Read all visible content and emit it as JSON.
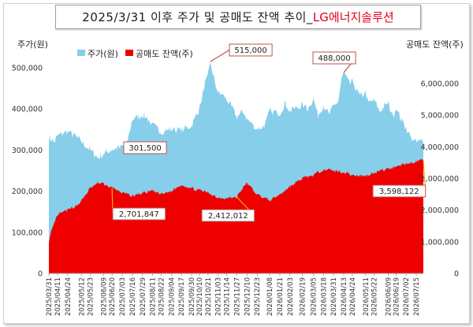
{
  "title": {
    "main": "2025/3/31 이후 주가 및 공매도 잔액 추이_",
    "company": "LG에너지솔루션"
  },
  "left_axis_label": "주가(원)",
  "right_axis_label": "공매도 잔액(주)",
  "legend": {
    "price": "주가(원)",
    "short": "공매도 잔액(주)"
  },
  "colors": {
    "price": "#87ceeb",
    "short": "#ee0000",
    "callout_border": "#c0504d",
    "connector": "#f0b400"
  },
  "chart_data": {
    "type": "area",
    "title": "2025/3/31 이후 주가 및 공매도 잔액 추이_LG에너지솔루션",
    "y_left": {
      "label": "주가(원)",
      "range": [
        0,
        500000
      ],
      "ticks": [
        0,
        100000,
        200000,
        300000,
        400000,
        500000
      ]
    },
    "y_right": {
      "label": "공매도 잔액(주)",
      "range": [
        0,
        6500000
      ],
      "ticks": [
        0,
        1000000,
        2000000,
        3000000,
        4000000,
        5000000,
        6000000
      ]
    },
    "x_range": [
      "2025-03-31",
      "2026-07-24"
    ],
    "x_ticks": [
      "2025/03/31",
      "2025/04/11",
      "2025/04/24",
      "2025/05/12",
      "2025/05/23",
      "2025/06/09",
      "2025/06/20",
      "2025/07/03",
      "2025/07/16",
      "2025/07/29",
      "2025/08/11",
      "2025/08/22",
      "2025/09/04",
      "2025/09/17",
      "2025/09/30",
      "2025/10/10",
      "2025/10/21",
      "2025/11/03",
      "2025/11/14",
      "2025/11/27",
      "2025/12/10",
      "2025/12/23",
      "2026/01/08",
      "2026/01/21",
      "2026/02/03",
      "2026/02/19",
      "2026/03/05",
      "2026/03/18",
      "2026/03/31",
      "2026/04/13",
      "2026/04/24",
      "2026/05/11",
      "2026/05/22",
      "2026/06/09",
      "2026/06/19",
      "2026/07/02",
      "2026/07/15"
    ],
    "series": [
      {
        "name": "주가(원)",
        "axis": "left",
        "points": [
          [
            "2025-03-31",
            330000
          ],
          [
            "2025-04-07",
            318000
          ],
          [
            "2025-04-11",
            335000
          ],
          [
            "2025-04-24",
            345000
          ],
          [
            "2025-05-06",
            330000
          ],
          [
            "2025-05-12",
            320000
          ],
          [
            "2025-05-23",
            300000
          ],
          [
            "2025-06-02",
            280000
          ],
          [
            "2025-06-09",
            292000
          ],
          [
            "2025-06-20",
            301500
          ],
          [
            "2025-06-30",
            305000
          ],
          [
            "2025-07-03",
            310000
          ],
          [
            "2025-07-09",
            315000
          ],
          [
            "2025-07-16",
            375000
          ],
          [
            "2025-07-29",
            385000
          ],
          [
            "2025-08-04",
            378000
          ],
          [
            "2025-08-11",
            360000
          ],
          [
            "2025-08-22",
            345000
          ],
          [
            "2025-09-04",
            350000
          ],
          [
            "2025-09-17",
            348000
          ],
          [
            "2025-09-30",
            360000
          ],
          [
            "2025-10-10",
            400000
          ],
          [
            "2025-10-17",
            460000
          ],
          [
            "2025-10-21",
            480000
          ],
          [
            "2025-10-24",
            515000
          ],
          [
            "2025-10-29",
            470000
          ],
          [
            "2025-11-03",
            440000
          ],
          [
            "2025-11-14",
            425000
          ],
          [
            "2025-11-27",
            380000
          ],
          [
            "2025-12-05",
            395000
          ],
          [
            "2025-12-10",
            375000
          ],
          [
            "2025-12-23",
            352000
          ],
          [
            "2026-01-02",
            360000
          ],
          [
            "2026-01-08",
            395000
          ],
          [
            "2026-01-21",
            390000
          ],
          [
            "2026-01-28",
            415000
          ],
          [
            "2026-02-03",
            395000
          ],
          [
            "2026-02-19",
            410000
          ],
          [
            "2026-02-26",
            400000
          ],
          [
            "2026-03-05",
            425000
          ],
          [
            "2026-03-11",
            385000
          ],
          [
            "2026-03-18",
            410000
          ],
          [
            "2026-03-25",
            385000
          ],
          [
            "2026-03-31",
            405000
          ],
          [
            "2026-04-06",
            420000
          ],
          [
            "2026-04-10",
            470000
          ],
          [
            "2026-04-13",
            488000
          ],
          [
            "2026-04-20",
            460000
          ],
          [
            "2026-04-24",
            465000
          ],
          [
            "2026-05-04",
            430000
          ],
          [
            "2026-05-11",
            440000
          ],
          [
            "2026-05-14",
            415000
          ],
          [
            "2026-05-22",
            420000
          ],
          [
            "2026-05-29",
            395000
          ],
          [
            "2026-06-09",
            415000
          ],
          [
            "2026-06-15",
            380000
          ],
          [
            "2026-06-19",
            405000
          ],
          [
            "2026-06-26",
            370000
          ],
          [
            "2026-07-02",
            355000
          ],
          [
            "2026-07-08",
            330000
          ],
          [
            "2026-07-15",
            318000
          ],
          [
            "2026-07-20",
            320000
          ],
          [
            "2026-07-24",
            330000
          ]
        ]
      },
      {
        "name": "공매도 잔액(주)",
        "axis": "right",
        "points": [
          [
            "2025-03-31",
            1000000
          ],
          [
            "2025-04-03",
            1300000
          ],
          [
            "2025-04-11",
            1850000
          ],
          [
            "2025-04-24",
            2000000
          ],
          [
            "2025-05-06",
            2150000
          ],
          [
            "2025-05-12",
            2300000
          ],
          [
            "2025-05-23",
            2700000
          ],
          [
            "2025-06-02",
            2850000
          ],
          [
            "2025-06-09",
            2830000
          ],
          [
            "2025-06-20",
            2701847
          ],
          [
            "2025-07-03",
            2550000
          ],
          [
            "2025-07-16",
            2450000
          ],
          [
            "2025-07-29",
            2550000
          ],
          [
            "2025-08-11",
            2600000
          ],
          [
            "2025-08-22",
            2500000
          ],
          [
            "2025-09-04",
            2600000
          ],
          [
            "2025-09-17",
            2800000
          ],
          [
            "2025-09-30",
            2700000
          ],
          [
            "2025-10-10",
            2620000
          ],
          [
            "2025-10-21",
            2560000
          ],
          [
            "2025-11-03",
            2400000
          ],
          [
            "2025-11-14",
            2380000
          ],
          [
            "2025-11-27",
            2412012
          ],
          [
            "2025-12-05",
            2700000
          ],
          [
            "2025-12-10",
            2860000
          ],
          [
            "2025-12-23",
            2500000
          ],
          [
            "2026-01-08",
            2300000
          ],
          [
            "2026-01-21",
            2500000
          ],
          [
            "2026-02-03",
            2750000
          ],
          [
            "2026-02-19",
            3000000
          ],
          [
            "2026-03-05",
            3100000
          ],
          [
            "2026-03-18",
            3300000
          ],
          [
            "2026-03-31",
            3250000
          ],
          [
            "2026-04-13",
            3200000
          ],
          [
            "2026-04-24",
            3100000
          ],
          [
            "2026-05-11",
            3080000
          ],
          [
            "2026-05-22",
            3200000
          ],
          [
            "2026-06-09",
            3300000
          ],
          [
            "2026-06-19",
            3400000
          ],
          [
            "2026-07-02",
            3450000
          ],
          [
            "2026-07-15",
            3550000
          ],
          [
            "2026-07-24",
            3598122
          ]
        ]
      }
    ],
    "annotations": [
      {
        "text": "515,000",
        "series": "주가(원)",
        "date": "2025-10-24",
        "value": 515000
      },
      {
        "text": "488,000",
        "series": "주가(원)",
        "date": "2026-04-13",
        "value": 488000
      },
      {
        "text": "301,500",
        "series": "주가(원)",
        "date": "2025-06-20",
        "value": 301500
      },
      {
        "text": "2,701,847",
        "series": "공매도 잔액(주)",
        "date": "2025-06-20",
        "value": 2701847
      },
      {
        "text": "2,412,012",
        "series": "공매도 잔액(주)",
        "date": "2025-11-27",
        "value": 2412012
      },
      {
        "text": "3,598,122",
        "series": "공매도 잔액(주)",
        "date": "2026-07-24",
        "value": 3598122
      }
    ],
    "legend_position": "top-left",
    "grid": false
  }
}
